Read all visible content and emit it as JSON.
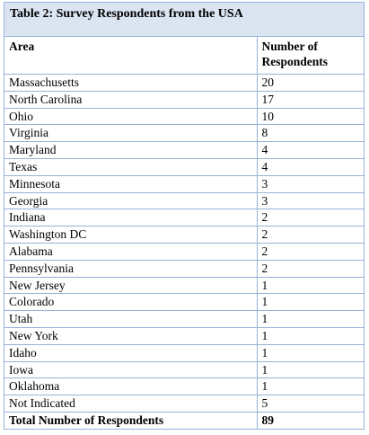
{
  "table": {
    "title": "Table 2: Survey Respondents from the USA",
    "header": [
      "Area",
      "Number of Respondents"
    ],
    "rows": [
      [
        "Massachusetts",
        20
      ],
      [
        "North Carolina",
        17
      ],
      [
        "Ohio",
        10
      ],
      [
        "Virginia",
        8
      ],
      [
        "Maryland",
        4
      ],
      [
        "Texas",
        4
      ],
      [
        "Minnesota",
        3
      ],
      [
        "Georgia",
        3
      ],
      [
        "Indiana",
        2
      ],
      [
        "Washington DC",
        2
      ],
      [
        "Alabama",
        2
      ],
      [
        "Pennsylvania",
        2
      ],
      [
        "New Jersey",
        1
      ],
      [
        "Colorado",
        1
      ],
      [
        "Utah",
        1
      ],
      [
        "New York",
        1
      ],
      [
        "Idaho",
        1
      ],
      [
        "Iowa",
        1
      ],
      [
        "Oklahoma",
        1
      ],
      [
        "Not Indicated",
        5
      ]
    ],
    "total": [
      "Total Number of Respondents",
      89
    ]
  }
}
